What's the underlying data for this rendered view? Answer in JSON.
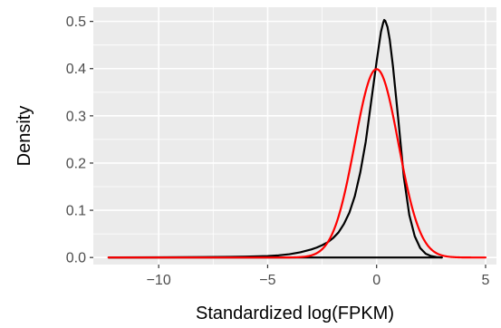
{
  "chart_data": {
    "type": "line",
    "title": "",
    "xlabel": "Standardized log(FPKM)",
    "ylabel": "Density",
    "xlim": [
      -13,
      5.5
    ],
    "ylim": [
      -0.015,
      0.53
    ],
    "x_ticks": [
      -10,
      -5,
      0,
      5
    ],
    "x_tick_labels": [
      "−10",
      "−5",
      "0",
      "5"
    ],
    "y_ticks": [
      0.0,
      0.1,
      0.2,
      0.3,
      0.4,
      0.5
    ],
    "y_tick_labels": [
      "0.0",
      "0.1",
      "0.2",
      "0.3",
      "0.4",
      "0.5"
    ],
    "grid": true,
    "legend": "none",
    "panel_background": "#ebebeb",
    "grid_color": "#ffffff",
    "series": [
      {
        "color": "#000000",
        "x": [
          -12.3,
          -10,
          -8,
          -6,
          -5,
          -4.5,
          -4,
          -3.5,
          -3,
          -2.75,
          -2.5,
          -2.25,
          -2,
          -1.75,
          -1.5,
          -1.25,
          -1,
          -0.75,
          -0.5,
          -0.25,
          0,
          0.1,
          0.2,
          0.3,
          0.35,
          0.4,
          0.5,
          0.6,
          0.75,
          1,
          1.25,
          1.5,
          1.75,
          2,
          2.25,
          2.5,
          2.75,
          3
        ],
        "y": [
          0,
          0.0003,
          0.0008,
          0.0018,
          0.003,
          0.0045,
          0.007,
          0.011,
          0.017,
          0.021,
          0.026,
          0.032,
          0.041,
          0.053,
          0.071,
          0.095,
          0.13,
          0.18,
          0.245,
          0.33,
          0.415,
          0.447,
          0.478,
          0.497,
          0.503,
          0.501,
          0.488,
          0.462,
          0.405,
          0.29,
          0.17,
          0.09,
          0.045,
          0.02,
          0.008,
          0.003,
          0.001,
          0
        ],
        "baseline": {
          "x": [
            -12.3,
            3
          ],
          "y": [
            0,
            0
          ]
        }
      },
      {
        "color": "#ff0000",
        "distribution": "normal",
        "mean": 0,
        "sd": 1,
        "x_range": [
          -12.3,
          5.0
        ]
      }
    ]
  }
}
